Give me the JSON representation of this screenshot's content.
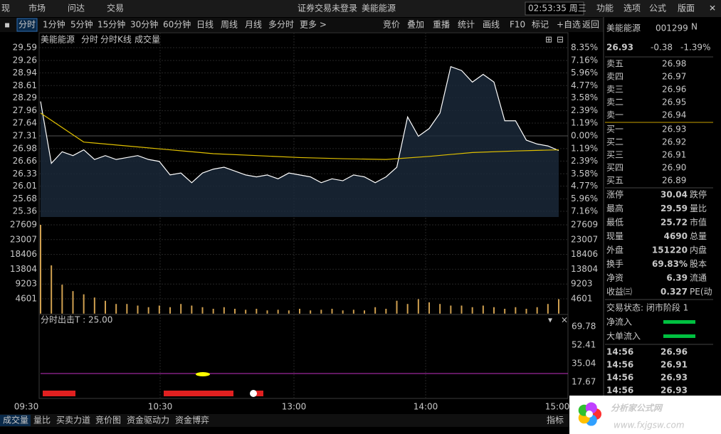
{
  "menu": {
    "left": [
      "现",
      "市场",
      "问达",
      "交易"
    ],
    "notice": "证券交易未登录",
    "stock": "美能能源",
    "clock": "02:53:35 周三",
    "right": [
      "功能",
      "选项",
      "公式",
      "版面"
    ]
  },
  "toolbar": {
    "periods": [
      "分时",
      "1分钟",
      "5分钟",
      "15分钟",
      "30分钟",
      "60分钟",
      "日线",
      "周线",
      "月线",
      "多分时",
      "更多 >"
    ],
    "tools": [
      "竞价",
      "叠加",
      "重播",
      "统计",
      "画线",
      "F10",
      "标记",
      "+自选",
      "返回"
    ]
  },
  "chart": {
    "title": "美能能源",
    "tabs": [
      "分时",
      "分时K线",
      "成交量"
    ],
    "price_ticks": [
      29.59,
      29.26,
      28.94,
      28.61,
      28.29,
      27.96,
      27.64,
      27.31,
      26.98,
      26.66,
      26.33,
      26.01,
      25.68,
      25.36
    ],
    "pct_labels": [
      "8.35%",
      "7.16%",
      "5.96%",
      "4.77%",
      "3.58%",
      "2.39%",
      "1.19%",
      "0.00%",
      "1.19%",
      "2.39%",
      "3.58%",
      "4.77%",
      "5.96%",
      "7.16%"
    ],
    "price_x": [
      0,
      5,
      10,
      15,
      20,
      25,
      30,
      35,
      40,
      45,
      50,
      55,
      60,
      65,
      70,
      75,
      80,
      85,
      90,
      95,
      100,
      105,
      110,
      115,
      120,
      125,
      130,
      135,
      140,
      145,
      150,
      155,
      160,
      165,
      170,
      175,
      180,
      185,
      190,
      195,
      200,
      205,
      210,
      215,
      220,
      225,
      230,
      235,
      240
    ],
    "price": [
      28.2,
      26.6,
      26.9,
      26.8,
      26.95,
      26.7,
      26.8,
      26.7,
      26.75,
      26.8,
      26.7,
      26.65,
      26.3,
      26.35,
      26.1,
      26.35,
      26.45,
      26.5,
      26.4,
      26.3,
      26.25,
      26.3,
      26.2,
      26.35,
      26.3,
      26.25,
      26.1,
      26.2,
      26.15,
      26.3,
      26.25,
      26.1,
      26.25,
      26.5,
      27.8,
      27.3,
      27.5,
      27.9,
      29.1,
      29.0,
      28.7,
      28.9,
      28.7,
      27.7,
      27.7,
      27.2,
      27.1,
      27.05,
      26.93
    ],
    "avg_x": [
      0,
      20,
      40,
      60,
      80,
      100,
      120,
      140,
      160,
      180,
      200,
      220,
      240
    ],
    "avg": [
      27.9,
      27.15,
      27.05,
      26.95,
      26.85,
      26.8,
      26.75,
      26.72,
      26.7,
      26.78,
      26.88,
      26.92,
      26.95
    ],
    "volume_ticks": [
      27609,
      23007,
      18406,
      13804,
      9203,
      4601
    ],
    "volume": [
      27609,
      15000,
      9000,
      7000,
      6000,
      5000,
      4000,
      3000,
      3000,
      2500,
      2000,
      2500,
      2000,
      3000,
      2500,
      2000,
      1500,
      2000,
      1500,
      1200,
      1500,
      1000,
      1200,
      1000,
      1500,
      1000,
      1200,
      1500,
      1000,
      1200,
      1000,
      2000,
      1500,
      4000,
      3000,
      4500,
      3500,
      3000,
      2500,
      2500,
      2000,
      2500,
      2000,
      1500,
      2000,
      1500,
      2000,
      3000,
      4500
    ],
    "indicator_title": "分时出击T : 25.00",
    "indicator_ticks": [
      69.78,
      52.41,
      35.04,
      17.67
    ],
    "times": [
      "09:30",
      "10:30",
      "13:00",
      "14:00",
      "15:00"
    ]
  },
  "bottom_tabs": [
    "成交量",
    "量比",
    "买卖力道",
    "竞价图",
    "资金驱动力",
    "资金博弈"
  ],
  "bottom_right": "指标",
  "quote": {
    "name": "美能能源",
    "code": "001299",
    "tag": "N",
    "price": "26.93",
    "change": "-0.38",
    "pct": "-1.39%",
    "sell": [
      [
        "卖五",
        "26.98"
      ],
      [
        "卖四",
        "26.97"
      ],
      [
        "卖三",
        "26.96"
      ],
      [
        "卖二",
        "26.95"
      ],
      [
        "卖一",
        "26.94"
      ]
    ],
    "buy": [
      [
        "买一",
        "26.93"
      ],
      [
        "买二",
        "26.92"
      ],
      [
        "买三",
        "26.91"
      ],
      [
        "买四",
        "26.90"
      ],
      [
        "买五",
        "26.89"
      ]
    ],
    "stats": [
      [
        "涨停",
        "30.04",
        "跌停"
      ],
      [
        "最高",
        "29.59",
        "量比"
      ],
      [
        "最低",
        "25.72",
        "市值"
      ],
      [
        "现量",
        "4690",
        "总量"
      ],
      [
        "外盘",
        "151220",
        "内盘"
      ],
      [
        "换手",
        "69.83%",
        "股本"
      ],
      [
        "净资",
        "6.39",
        "流通"
      ],
      [
        "收益㈢",
        "0.327",
        "PE(动"
      ]
    ],
    "status": "交易状态: 闭市阶段 1",
    "flows": [
      "净流入",
      "大单流入"
    ],
    "trades": [
      [
        "14:56",
        "26.96"
      ],
      [
        "14:56",
        "26.91"
      ],
      [
        "14:56",
        "26.93"
      ],
      [
        "14:56",
        "26.93"
      ]
    ]
  },
  "logo": {
    "name": "分析家公式网",
    "url": "www.fxjgsw.com"
  }
}
